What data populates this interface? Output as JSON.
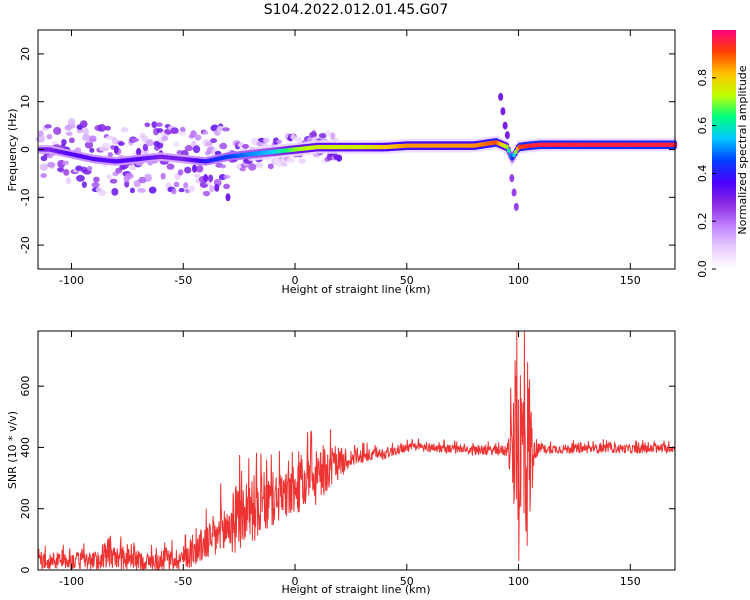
{
  "title": "S104.2022.012.01.45.G07",
  "chart_data": [
    {
      "type": "heatmap",
      "xlabel": "Height of straight line (km)",
      "ylabel": "Frequency (Hz)",
      "xlim": [
        -115,
        170
      ],
      "ylim": [
        -25,
        25
      ],
      "x_ticks": [
        -100,
        -50,
        0,
        50,
        100,
        150
      ],
      "y_ticks": [
        -20,
        -10,
        0,
        10,
        20
      ],
      "grid": false,
      "colorbar": {
        "label": "Normalized spectral amplitude",
        "range": [
          0,
          1
        ],
        "ticks": [
          0.0,
          0.2,
          0.4,
          0.6,
          0.8
        ],
        "colormap": [
          "#ffffff",
          "#e8ccff",
          "#c080ff",
          "#8a2be2",
          "#4b00ff",
          "#0040ff",
          "#00c8ff",
          "#00ff80",
          "#c0ff00",
          "#ffc000",
          "#ff4000",
          "#ff0080"
        ]
      },
      "ridge": {
        "x": [
          -110,
          -100,
          -90,
          -80,
          -70,
          -60,
          -50,
          -40,
          -30,
          -20,
          -10,
          0,
          10,
          20,
          30,
          40,
          50,
          60,
          70,
          80,
          90,
          95,
          97,
          100,
          105,
          110,
          120,
          130,
          140,
          150,
          160,
          170
        ],
        "frequency": [
          0,
          -1,
          -2,
          -2.5,
          -2,
          -1.5,
          -2,
          -2.5,
          -1.5,
          -1,
          -0.5,
          0,
          0.5,
          0.5,
          0.5,
          0.5,
          0.8,
          0.8,
          0.8,
          0.8,
          1.5,
          0.5,
          -2,
          0.5,
          0.8,
          1,
          1,
          1,
          1,
          1,
          1,
          1
        ],
        "amplitude": [
          0.3,
          0.35,
          0.35,
          0.35,
          0.35,
          0.3,
          0.3,
          0.4,
          0.45,
          0.5,
          0.55,
          0.7,
          0.75,
          0.75,
          0.75,
          0.8,
          0.85,
          0.85,
          0.85,
          0.85,
          0.9,
          0.7,
          0.4,
          0.9,
          0.95,
          0.95,
          0.95,
          0.95,
          0.95,
          0.95,
          0.95,
          0.95
        ]
      },
      "spurious_branches": [
        {
          "x": [
            -80,
            -70,
            -60,
            -50,
            -45,
            -40,
            -35,
            -30
          ],
          "frequency": [
            0,
            -0.5,
            -1,
            -2,
            -4,
            -6,
            -8,
            -10
          ],
          "amplitude": 0.3
        },
        {
          "x": [
            92,
            93,
            94,
            95
          ],
          "frequency": [
            11,
            8,
            5,
            3
          ],
          "amplitude": 0.3
        },
        {
          "x": [
            97,
            98,
            99
          ],
          "frequency": [
            -6,
            -9,
            -12
          ],
          "amplitude": 0.25
        }
      ]
    },
    {
      "type": "line",
      "xlabel": "Height of straight line (km)",
      "ylabel": "SNR (10 * v/v)",
      "xlim": [
        -115,
        170
      ],
      "ylim": [
        0,
        780
      ],
      "x_ticks": [
        -100,
        -50,
        0,
        50,
        100,
        150
      ],
      "y_ticks": [
        0,
        200,
        400,
        600
      ],
      "grid": false,
      "color": "#ee3333",
      "series": [
        {
          "x": [
            -115,
            -100,
            -90,
            -80,
            -70,
            -60,
            -50,
            -45,
            -40,
            -35,
            -30,
            -25,
            -20,
            -15,
            -10,
            -5,
            0,
            5,
            10,
            15,
            20,
            25,
            30,
            35,
            40,
            45,
            50,
            60,
            70,
            80,
            90,
            95,
            98,
            100,
            102,
            103,
            105,
            107,
            110,
            120,
            130,
            140,
            150,
            160,
            170
          ],
          "mean": [
            30,
            30,
            30,
            40,
            30,
            25,
            40,
            60,
            90,
            110,
            140,
            170,
            200,
            210,
            230,
            240,
            260,
            280,
            300,
            330,
            350,
            365,
            370,
            375,
            380,
            390,
            400,
            400,
            395,
            390,
            390,
            390,
            380,
            360,
            380,
            400,
            380,
            390,
            395,
            395,
            395,
            398,
            395,
            395,
            398
          ],
          "noise": [
            25,
            30,
            30,
            40,
            30,
            30,
            40,
            50,
            60,
            80,
            100,
            110,
            110,
            110,
            90,
            80,
            80,
            90,
            90,
            70,
            50,
            30,
            25,
            20,
            20,
            15,
            15,
            15,
            15,
            15,
            15,
            20,
            200,
            350,
            380,
            380,
            300,
            30,
            15,
            15,
            15,
            15,
            15,
            15,
            15
          ]
        }
      ]
    }
  ]
}
